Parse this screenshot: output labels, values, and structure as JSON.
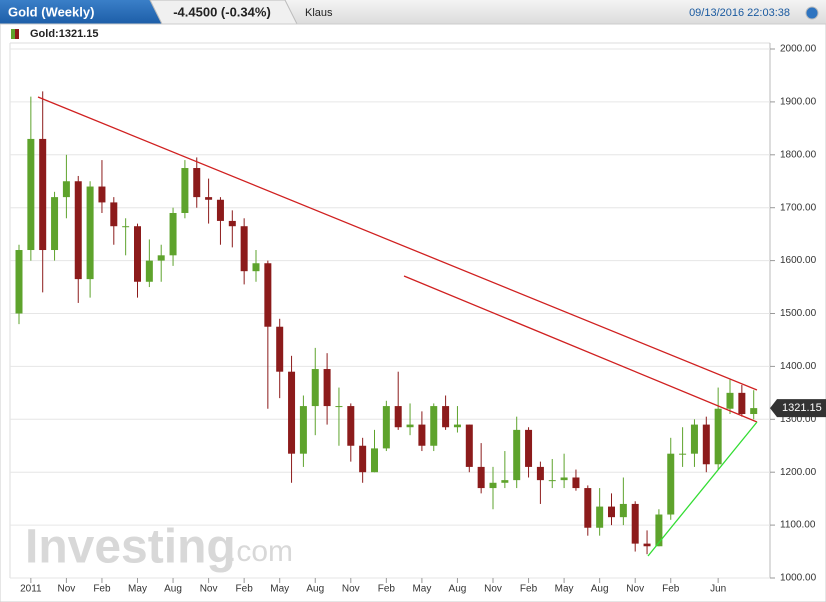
{
  "header": {
    "tab": "Gold (Weekly)",
    "change": "-4.4500 (-0.34%)",
    "user": "Klaus",
    "timestamp": "09/13/2016 22:03:38",
    "symbol": "Gold:1321.15"
  },
  "watermark": {
    "brand": "Investing",
    "suffix": ".com"
  },
  "chart_data": {
    "type": "candlestick",
    "categories": [
      null,
      "2011",
      null,
      null,
      "Nov",
      null,
      null,
      "Feb",
      null,
      null,
      "May",
      null,
      null,
      "Aug",
      null,
      null,
      "Nov",
      null,
      null,
      "Feb",
      null,
      null,
      "May",
      null,
      null,
      "Aug",
      null,
      null,
      "Nov",
      null,
      null,
      "Feb",
      null,
      null,
      "May",
      null,
      null,
      "Aug",
      null,
      null,
      "Nov",
      null,
      null,
      "Feb",
      null,
      null,
      "May",
      null,
      null,
      "Aug",
      null,
      null,
      "Nov",
      null,
      null,
      "Feb",
      null,
      null,
      null,
      "Jun",
      null,
      null,
      null
    ],
    "ohlc": [
      [
        1500,
        1630,
        1480,
        1620
      ],
      [
        1620,
        1910,
        1600,
        1830
      ],
      [
        1830,
        1920,
        1540,
        1620
      ],
      [
        1620,
        1730,
        1600,
        1720
      ],
      [
        1720,
        1800,
        1680,
        1750
      ],
      [
        1750,
        1760,
        1520,
        1565
      ],
      [
        1565,
        1750,
        1530,
        1740
      ],
      [
        1740,
        1790,
        1690,
        1710
      ],
      [
        1710,
        1720,
        1630,
        1665
      ],
      [
        1665,
        1680,
        1610,
        1665
      ],
      [
        1665,
        1670,
        1530,
        1560
      ],
      [
        1560,
        1640,
        1550,
        1600
      ],
      [
        1600,
        1630,
        1560,
        1610
      ],
      [
        1610,
        1700,
        1590,
        1690
      ],
      [
        1690,
        1790,
        1680,
        1775
      ],
      [
        1775,
        1795,
        1700,
        1720
      ],
      [
        1720,
        1755,
        1670,
        1715
      ],
      [
        1715,
        1720,
        1630,
        1675
      ],
      [
        1675,
        1695,
        1625,
        1665
      ],
      [
        1665,
        1680,
        1555,
        1580
      ],
      [
        1580,
        1620,
        1560,
        1595
      ],
      [
        1595,
        1600,
        1320,
        1475
      ],
      [
        1475,
        1490,
        1340,
        1390
      ],
      [
        1390,
        1420,
        1180,
        1235
      ],
      [
        1235,
        1345,
        1210,
        1325
      ],
      [
        1325,
        1435,
        1270,
        1395
      ],
      [
        1395,
        1425,
        1290,
        1325
      ],
      [
        1325,
        1360,
        1250,
        1325
      ],
      [
        1325,
        1330,
        1220,
        1250
      ],
      [
        1250,
        1265,
        1180,
        1200
      ],
      [
        1200,
        1280,
        1200,
        1245
      ],
      [
        1245,
        1335,
        1240,
        1325
      ],
      [
        1325,
        1390,
        1280,
        1285
      ],
      [
        1285,
        1330,
        1270,
        1290
      ],
      [
        1290,
        1315,
        1240,
        1250
      ],
      [
        1250,
        1330,
        1240,
        1325
      ],
      [
        1325,
        1345,
        1280,
        1285
      ],
      [
        1285,
        1325,
        1275,
        1290
      ],
      [
        1290,
        1290,
        1200,
        1210
      ],
      [
        1210,
        1255,
        1160,
        1170
      ],
      [
        1170,
        1210,
        1130,
        1180
      ],
      [
        1180,
        1240,
        1170,
        1185
      ],
      [
        1185,
        1305,
        1170,
        1280
      ],
      [
        1280,
        1285,
        1190,
        1210
      ],
      [
        1210,
        1220,
        1140,
        1185
      ],
      [
        1185,
        1225,
        1170,
        1185
      ],
      [
        1185,
        1235,
        1170,
        1190
      ],
      [
        1190,
        1205,
        1165,
        1170
      ],
      [
        1170,
        1175,
        1080,
        1095
      ],
      [
        1095,
        1170,
        1080,
        1135
      ],
      [
        1135,
        1160,
        1100,
        1115
      ],
      [
        1115,
        1190,
        1100,
        1140
      ],
      [
        1140,
        1145,
        1050,
        1065
      ],
      [
        1065,
        1090,
        1045,
        1060
      ],
      [
        1060,
        1130,
        1060,
        1120
      ],
      [
        1120,
        1265,
        1110,
        1235
      ],
      [
        1235,
        1285,
        1210,
        1235
      ],
      [
        1235,
        1300,
        1210,
        1290
      ],
      [
        1290,
        1305,
        1200,
        1215
      ],
      [
        1215,
        1360,
        1205,
        1320
      ],
      [
        1320,
        1375,
        1310,
        1350
      ],
      [
        1350,
        1365,
        1305,
        1310
      ],
      [
        1310,
        1355,
        1300,
        1321.15
      ]
    ],
    "up_color": "#5ea32c",
    "down_color": "#8c1b1b",
    "ylim": [
      1000,
      2000
    ],
    "yticks": [
      {
        "value": 1000,
        "label": "1000.00"
      },
      {
        "value": 1100,
        "label": "1100.00"
      },
      {
        "value": 1200,
        "label": "1200.00"
      },
      {
        "value": 1300,
        "label": "1300.00"
      },
      {
        "value": 1400,
        "label": "1400.00"
      },
      {
        "value": 1500,
        "label": "1500.00"
      },
      {
        "value": 1600,
        "label": "1600.00"
      },
      {
        "value": 1700,
        "label": "1700.00"
      },
      {
        "value": 1800,
        "label": "1800.00"
      },
      {
        "value": 1900,
        "label": "1900.00"
      },
      {
        "value": 2000,
        "label": "2000.00"
      }
    ],
    "grid": true
  }
}
